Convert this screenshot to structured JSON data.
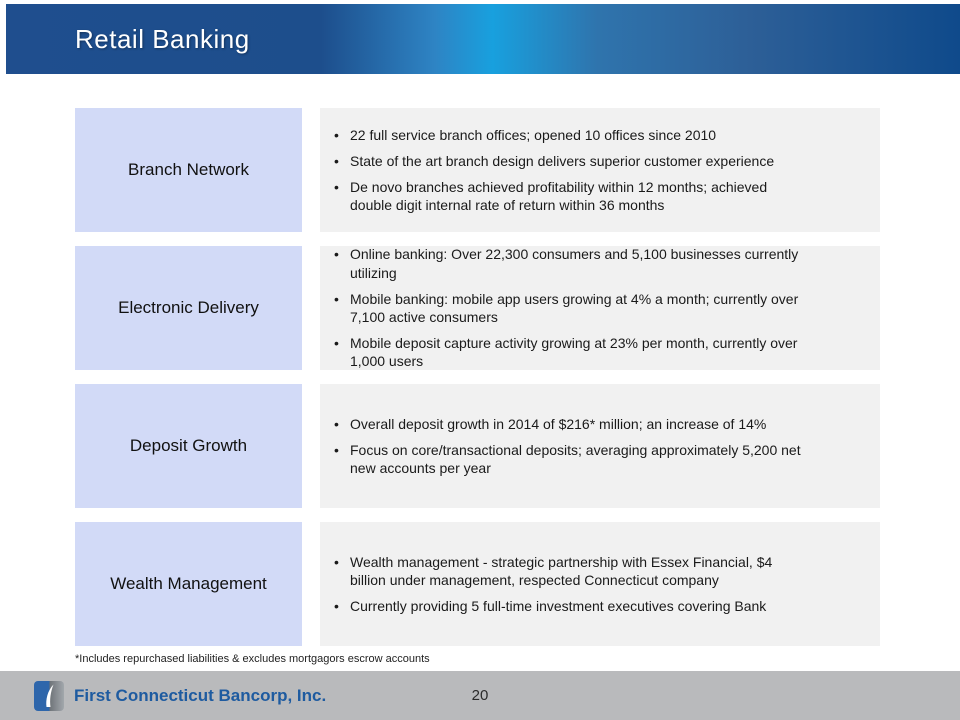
{
  "slide": {
    "title": "Retail Banking",
    "rows": [
      {
        "label": "Branch Network",
        "bullets": [
          "22 full service branch offices; opened 10 offices since 2010",
          "State of the art branch design delivers superior customer experience",
          "De novo branches achieved profitability within 12 months; achieved\ndouble digit internal rate of return within 36 months"
        ]
      },
      {
        "label": "Electronic Delivery",
        "bullets": [
          "Online banking: Over 22,300 consumers and 5,100 businesses currently\nutilizing",
          "Mobile banking: mobile app users growing at 4% a month; currently over\n7,100 active consumers",
          "Mobile deposit capture activity growing at 23% per month, currently over\n1,000 users"
        ]
      },
      {
        "label": "Deposit Growth",
        "bullets": [
          "Overall deposit growth in 2014 of $216* million;  an increase of 14%",
          "Focus on core/transactional deposits;  averaging approximately 5,200 net\nnew accounts per year"
        ]
      },
      {
        "label": "Wealth Management",
        "bullets": [
          "Wealth management - strategic partnership with Essex Financial, $4\nbillion under management, respected Connecticut company",
          "Currently providing 5 full-time investment executives covering Bank"
        ]
      }
    ],
    "footnote": "*Includes repurchased liabilities & excludes mortgagors escrow accounts",
    "footer": {
      "company": "First Connecticut Bancorp, Inc.",
      "page_number": "20",
      "logo": "first-connecticut-bancorp-logo"
    },
    "colors": {
      "header_navy": "#1d4e8c",
      "header_cyan": "#18a0de",
      "label_box": "#d2daf7",
      "content_box": "#f1f1f1",
      "footer_bar": "#b9babc",
      "company_text": "#1e5ba0",
      "title_text": "#ffffff"
    }
  }
}
